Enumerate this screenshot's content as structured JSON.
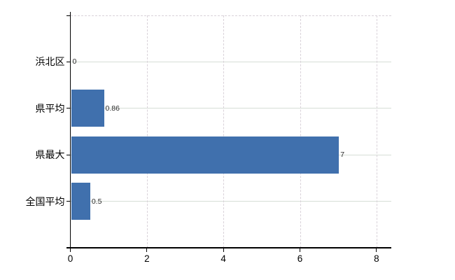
{
  "chart_data": {
    "type": "bar",
    "orientation": "horizontal",
    "title": "",
    "xlabel": "",
    "ylabel": "",
    "categories": [
      "浜北区",
      "県平均",
      "県最大",
      "全国平均"
    ],
    "values": [
      0,
      0.86,
      7,
      0.5
    ],
    "value_labels": [
      "0",
      "0.86",
      "7",
      "0.5"
    ],
    "x_ticks": [
      0,
      2,
      4,
      6,
      8
    ],
    "x_tick_labels": [
      "0",
      "2",
      "4",
      "6",
      "8"
    ],
    "xlim": [
      0,
      8.4
    ],
    "grid": true,
    "legend": false,
    "colors": {
      "bar": "#4070ad",
      "axis": "#000000",
      "h_grid": "#d6ded6",
      "v_grid": "#d9d2d9",
      "background": "#ffffff",
      "tick_label": "#000000",
      "value_label": "#2b2b2b"
    }
  }
}
